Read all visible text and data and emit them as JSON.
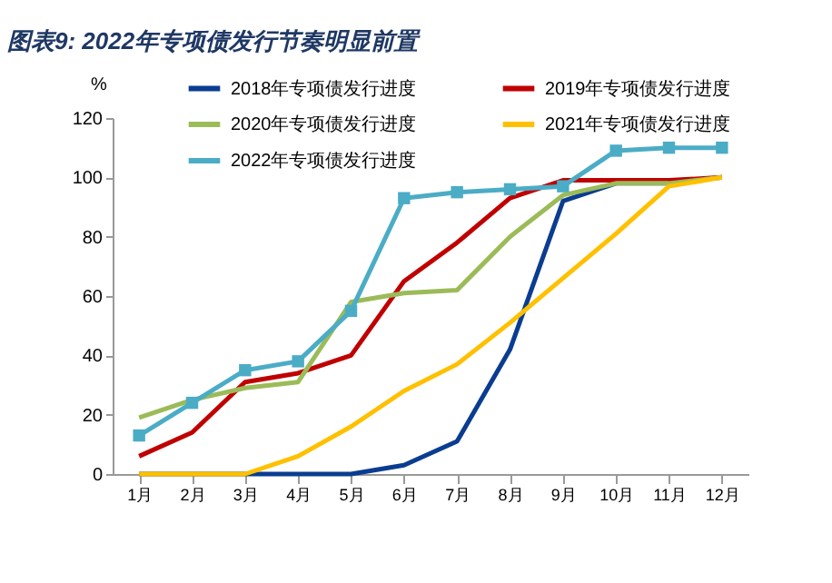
{
  "chart_data": {
    "type": "line",
    "title": "图表9:  2022年专项债发行节奏明显前置",
    "ylabel": "%",
    "categories": [
      "1月",
      "2月",
      "3月",
      "4月",
      "5月",
      "6月",
      "7月",
      "8月",
      "9月",
      "10月",
      "11月",
      "12月"
    ],
    "ylim": [
      0,
      120
    ],
    "yticks": [
      0,
      20,
      40,
      60,
      80,
      100,
      120
    ],
    "grid": false,
    "legend": "top",
    "line_style": "solid",
    "series": [
      {
        "name": "2018年专项债发行进度",
        "color": "#0a3d91",
        "values": [
          0,
          0,
          0,
          0,
          0,
          3,
          11,
          42,
          92,
          98,
          98,
          100
        ]
      },
      {
        "name": "2019年专项债发行进度",
        "color": "#c00000",
        "values": [
          6,
          14,
          31,
          34,
          40,
          65,
          78,
          93,
          99,
          99,
          99,
          100
        ]
      },
      {
        "name": "2020年专项债发行进度",
        "color": "#9bbb59",
        "values": [
          19,
          25,
          29,
          31,
          58,
          61,
          62,
          80,
          94,
          98,
          98,
          100
        ]
      },
      {
        "name": "2021年专项债发行进度",
        "color": "#ffc000",
        "values": [
          0,
          0,
          0,
          6,
          16,
          28,
          37,
          51,
          66,
          81,
          97,
          100
        ]
      },
      {
        "name": "2022年专项债发行进度",
        "color": "#4bacc6",
        "marker": "square",
        "values": [
          13,
          24,
          35,
          38,
          55,
          93,
          95,
          96,
          97,
          109,
          110,
          110
        ]
      }
    ]
  }
}
